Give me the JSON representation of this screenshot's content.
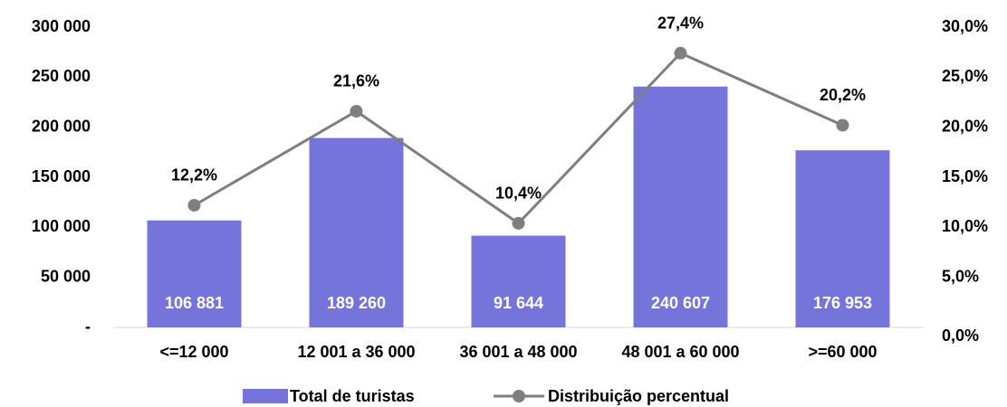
{
  "chart_data": {
    "type": "bar_line",
    "categories": [
      "<=12 000",
      "12 001 a 36 000",
      "36 001 a 48 000",
      "48 001 a 60 000",
      ">=60 000"
    ],
    "series": [
      {
        "name": "Total de turistas",
        "color": "#7474db",
        "type": "bar",
        "values": [
          106881,
          189260,
          91644,
          240607,
          176953
        ],
        "value_labels": [
          "106 881",
          "189 260",
          "91 644",
          "240 607",
          "176 953"
        ]
      },
      {
        "name": "Distribuição percentual",
        "color": "#7f7f7f",
        "type": "line",
        "axis": "y2",
        "values": [
          12.2,
          21.6,
          10.4,
          27.4,
          20.2
        ],
        "value_labels": [
          "12,2%",
          "21,6%",
          "10,4%",
          "27,4%",
          "20,2%"
        ]
      }
    ],
    "ylim": [
      0,
      300000
    ],
    "yticks": [
      {
        "value": 0,
        "label": "-"
      },
      {
        "value": 50000,
        "label": "50 000"
      },
      {
        "value": 100000,
        "label": "100 000"
      },
      {
        "value": 150000,
        "label": "150 000"
      },
      {
        "value": 200000,
        "label": "200 000"
      },
      {
        "value": 250000,
        "label": "250 000"
      },
      {
        "value": 300000,
        "label": "300 000"
      }
    ],
    "y2lim": [
      0,
      30
    ],
    "y2ticks": [
      {
        "value": 0,
        "label": "0,0%"
      },
      {
        "value": 5,
        "label": "5,0%"
      },
      {
        "value": 10,
        "label": "10,0%"
      },
      {
        "value": 15,
        "label": "15,0%"
      },
      {
        "value": 20,
        "label": "20,0%"
      },
      {
        "value": 25,
        "label": "25,0%"
      },
      {
        "value": 30,
        "label": "30,0%"
      }
    ],
    "legend": "bottom"
  }
}
